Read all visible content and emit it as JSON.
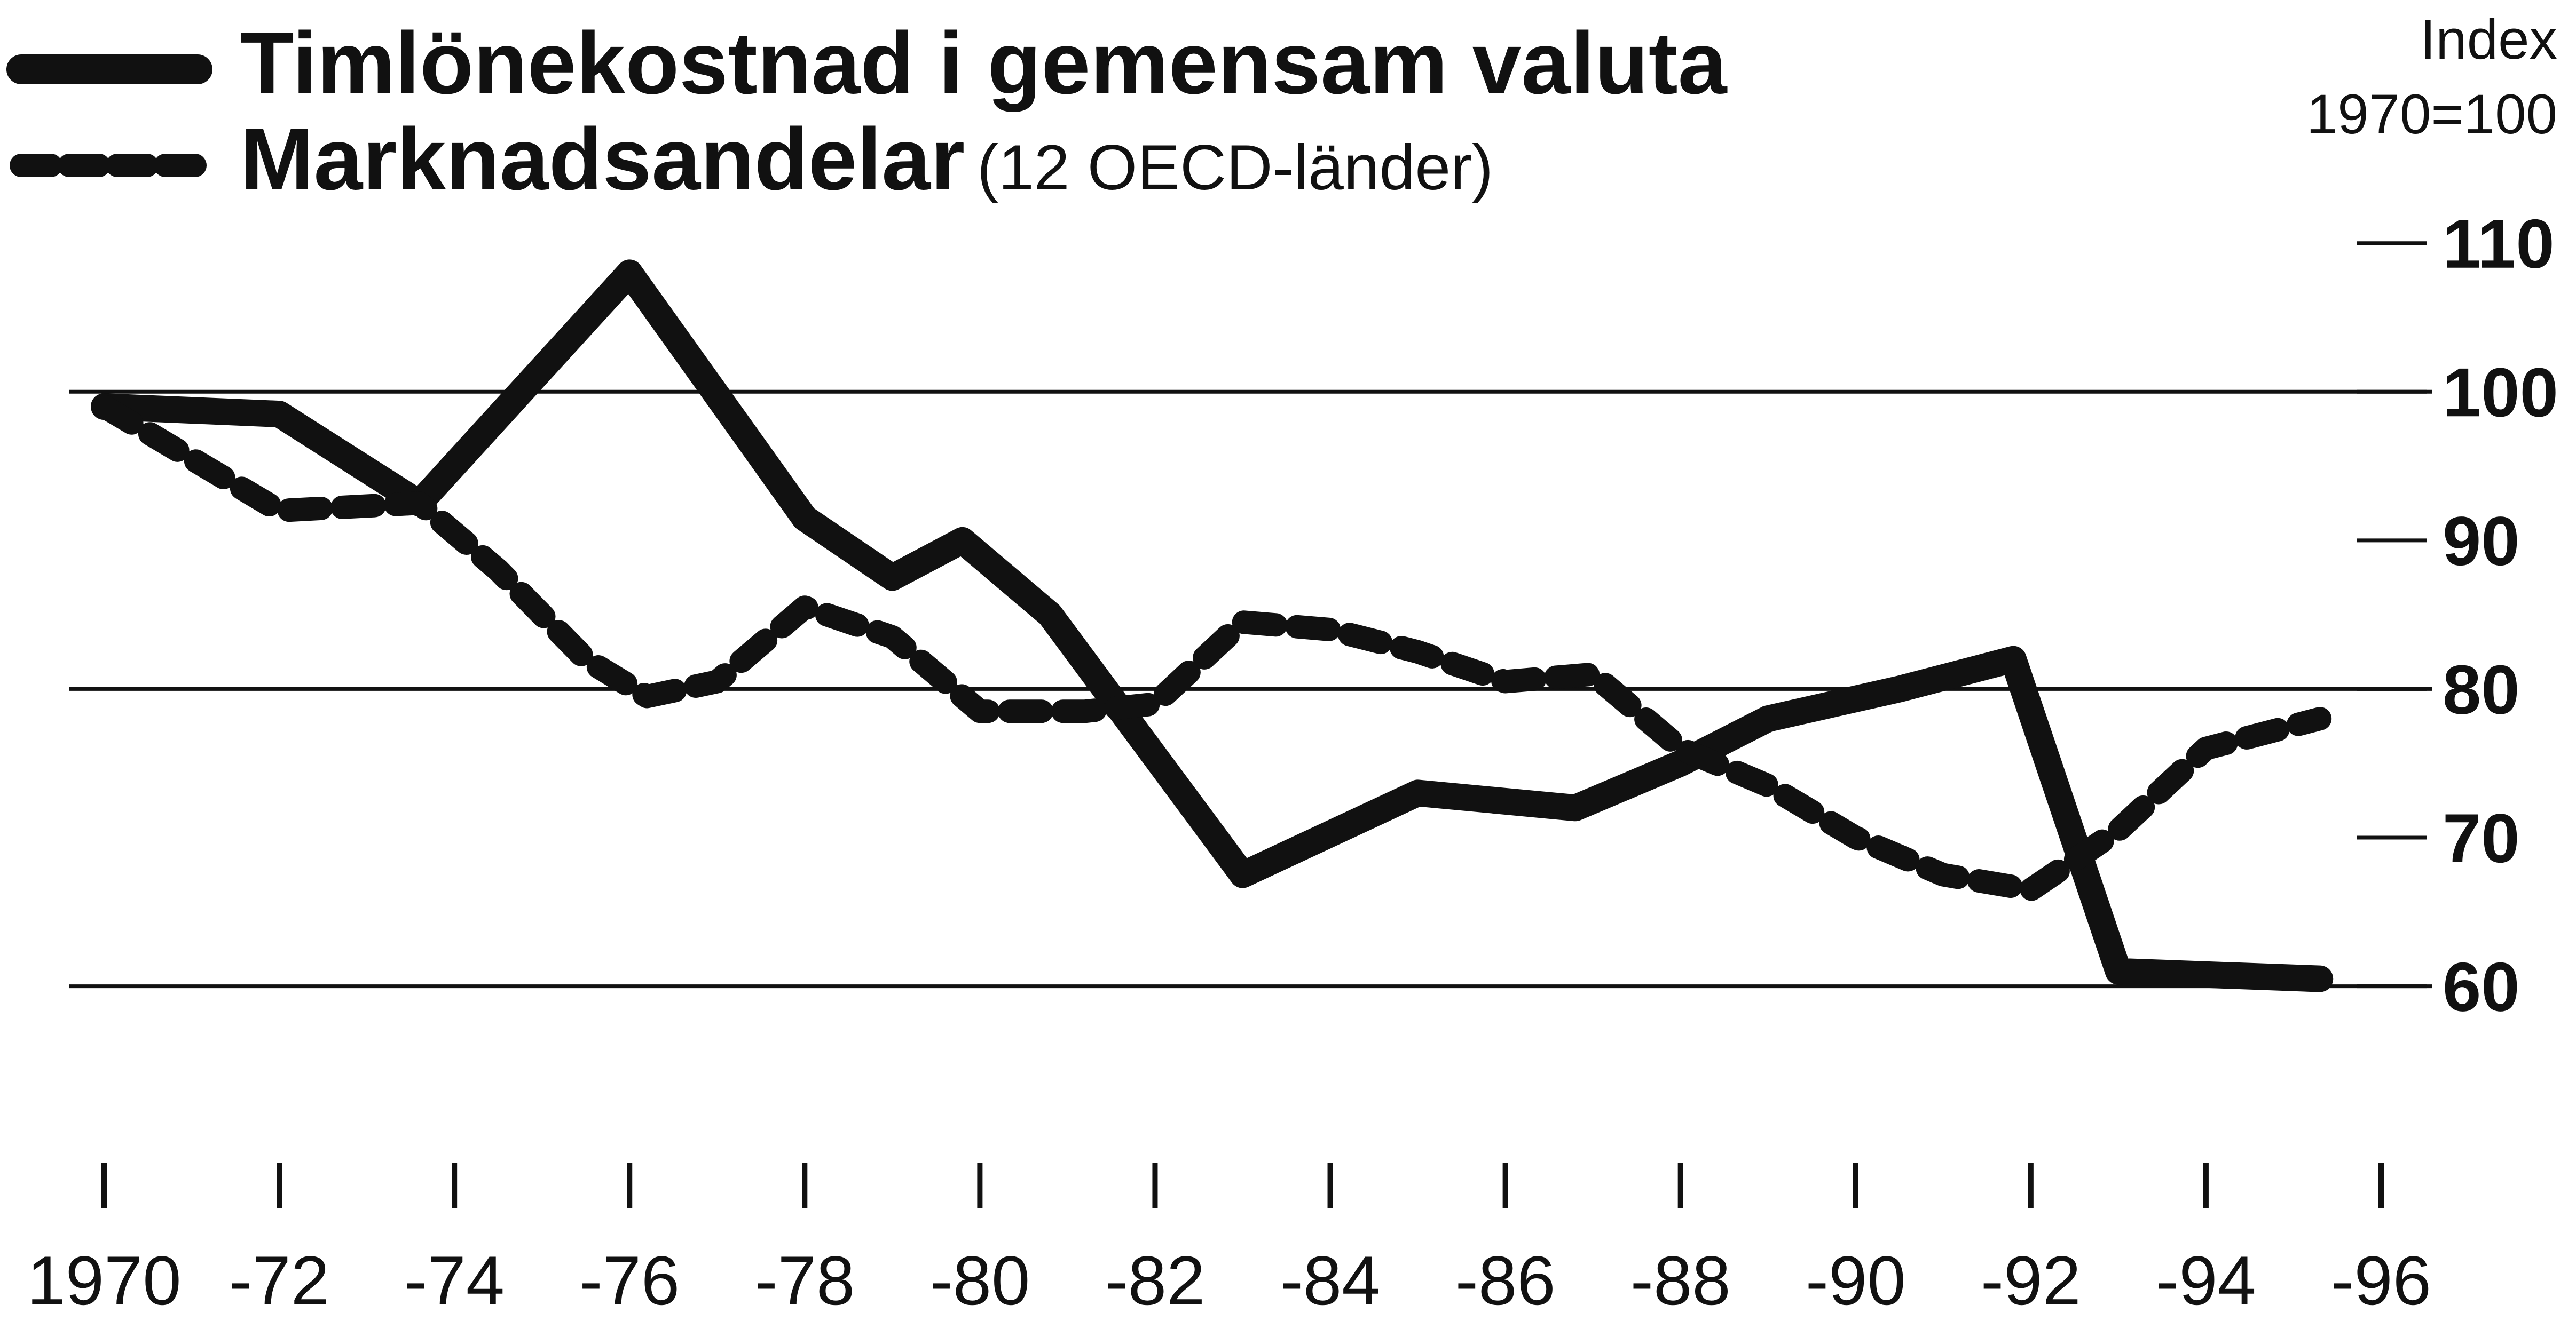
{
  "chart_data": {
    "type": "line",
    "title": "",
    "legend": [
      {
        "name": "Timlönekostnad i gemensam valuta",
        "qualifier": "",
        "style": "solid"
      },
      {
        "name": "Marknadsandelar",
        "qualifier": "(12 OECD-länder)",
        "style": "dashed"
      }
    ],
    "legend_position": "top-left",
    "y_axis": {
      "label_line1": "Index",
      "label_line2": "1970=100",
      "position": "right",
      "ticks": [
        60,
        70,
        80,
        90,
        100,
        110
      ],
      "tick_labels": [
        "60",
        "70",
        "80",
        "90",
        "100",
        "110"
      ],
      "range": [
        56,
        112
      ],
      "gridlines": [
        60,
        80,
        100
      ]
    },
    "x_axis": {
      "range": [
        1970,
        1996
      ],
      "ticks": [
        1970,
        1972,
        1974,
        1976,
        1978,
        1980,
        1982,
        1984,
        1986,
        1988,
        1990,
        1992,
        1994,
        1996
      ],
      "tick_labels": [
        "1970",
        "-72",
        "-74",
        "-76",
        "-78",
        "-80",
        "-82",
        "-84",
        "-86",
        "-88",
        "-90",
        "-92",
        "-94",
        "-96"
      ]
    },
    "series": [
      {
        "name": "Timlönekostnad i gemensam valuta",
        "style": "solid",
        "x": [
          1970,
          1972,
          1973.6,
          1976,
          1978,
          1979,
          1979.8,
          1980.8,
          1983,
          1985,
          1986.8,
          1988,
          1989,
          1990.5,
          1991.8,
          1993,
          1995.3
        ],
        "y": [
          99,
          98.5,
          92.5,
          108,
          91.5,
          87.5,
          90,
          85,
          67.5,
          73,
          72,
          75,
          78,
          80,
          82,
          61,
          60.5
        ]
      },
      {
        "name": "Marknadsandelar",
        "style": "dashed",
        "x": [
          1970,
          1971,
          1972,
          1973.6,
          1974.5,
          1975.5,
          1976.2,
          1977,
          1978,
          1979,
          1980,
          1981.2,
          1982,
          1983,
          1984,
          1985,
          1986,
          1987,
          1988,
          1989,
          1990,
          1991,
          1992,
          1993,
          1994,
          1995.3
        ],
        "y": [
          99,
          95.5,
          92,
          92.5,
          88,
          82,
          79.5,
          80.5,
          85.5,
          83.5,
          78.5,
          78.5,
          79,
          84.5,
          84,
          82.5,
          80.5,
          81,
          76,
          73.5,
          70,
          67.5,
          66.5,
          70.5,
          76,
          78
        ]
      }
    ]
  }
}
